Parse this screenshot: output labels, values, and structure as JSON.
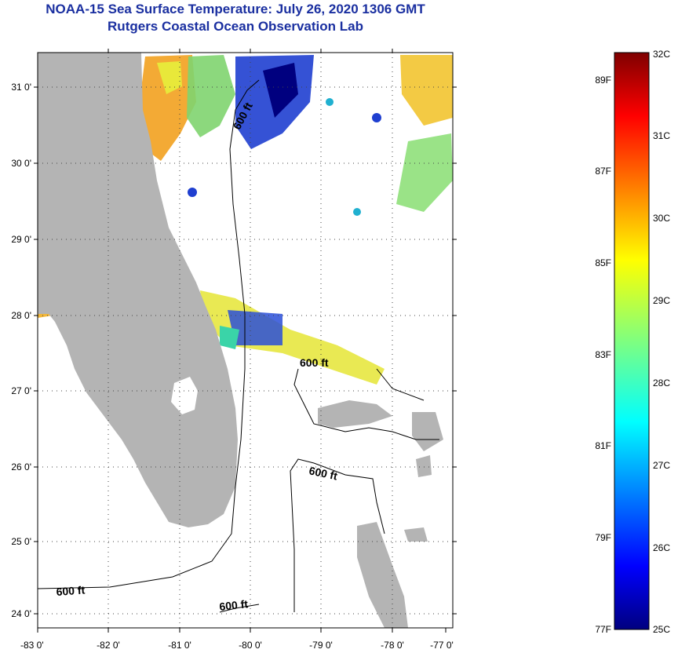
{
  "header": {
    "title_line1": "NOAA-15 Sea Surface Temperature:  July 26, 2020 1306 GMT",
    "title_line2": "Rutgers Coastal Ocean Observation Lab"
  },
  "map": {
    "lat_labels": [
      "31 0'",
      "30 0'",
      "29 0'",
      "28 0'",
      "27 0'",
      "26 0'",
      "25 0'",
      "24 0'"
    ],
    "lon_labels": [
      "-83 0'",
      "-82 0'",
      "-81 0'",
      "-80 0'",
      "-79 0'",
      "-78 0'",
      "-77 0'"
    ],
    "isobath_label": "600 ft",
    "land_color": "#b4b4b4",
    "contour_color": "#000000"
  },
  "colorbar": {
    "celsius_labels": [
      "32C",
      "31C",
      "30C",
      "29C",
      "28C",
      "27C",
      "26C",
      "25C"
    ],
    "fahrenheit_labels": [
      "89F",
      "87F",
      "85F",
      "83F",
      "81F",
      "79F",
      "77F"
    ],
    "min_color": "#00007f",
    "max_color": "#7f0000"
  }
}
